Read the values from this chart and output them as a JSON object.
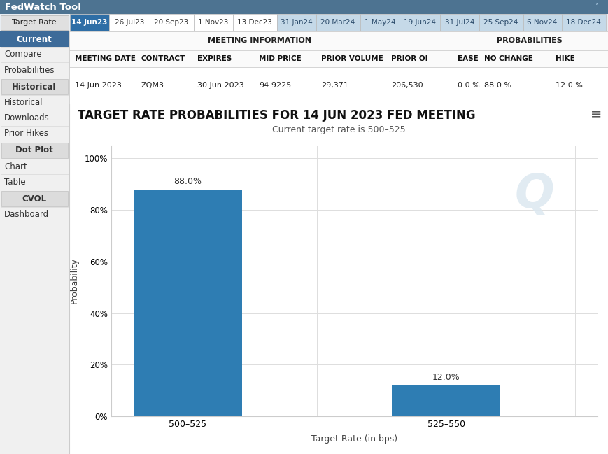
{
  "title": "TARGET RATE PROBABILITIES FOR 14 JUN 2023 FED MEETING",
  "subtitle": "Current target rate is 500–525",
  "xlabel": "Target Rate (in bps)",
  "ylabel": "Probability",
  "categories": [
    "500–525",
    "525–550"
  ],
  "values": [
    88.0,
    12.0
  ],
  "bar_color": "#2e7db3",
  "yticks": [
    0,
    20,
    40,
    60,
    80,
    100
  ],
  "ytick_labels": [
    "0%",
    "20%",
    "40%",
    "60%",
    "80%",
    "100%"
  ],
  "header_bg": "#4d7391",
  "tab_active_bg": "#2e6ea6",
  "tab_inactive_bg": "#ffffff",
  "tab_2024_bg": "#c5d9e8",
  "sidebar_bg": "#f0f0f0",
  "sidebar_active_bg": "#3d6b99",
  "sidebar_section_bg": "#dcdcdc",
  "main_bg": "#ffffff",
  "grid_color": "#e0e0e0",
  "tool_name": "FedWatch Tool",
  "tabs_2023": [
    "14 Jun23",
    "26 Jul23",
    "20 Sep23",
    "1 Nov23",
    "13 Dec23"
  ],
  "tabs_2024": [
    "31 Jan24",
    "20 Mar24",
    "1 May24",
    "19 Jun24",
    "31 Jul24",
    "25 Sep24",
    "6 Nov24",
    "18 Dec24"
  ],
  "meeting_date": "14 Jun 2023",
  "contract": "ZQM3",
  "expires": "30 Jun 2023",
  "mid_price": "94.9225",
  "prior_volume": "29,371",
  "prior_oi": "206,530",
  "prob_ease": "0.0 %",
  "prob_no_change": "88.0 %",
  "prob_hike": "12.0 %"
}
